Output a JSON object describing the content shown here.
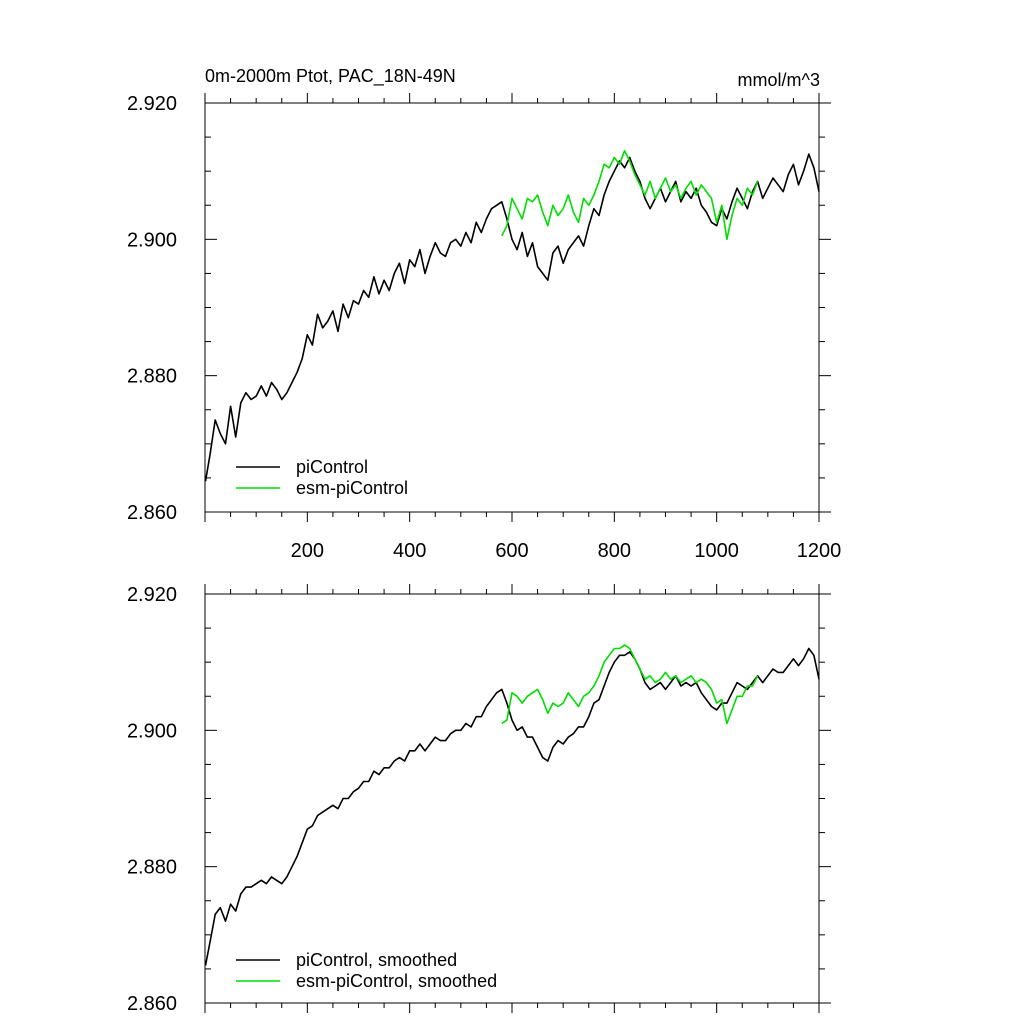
{
  "figure": {
    "title": "0m-2000m Ptot, PAC_18N-49N",
    "units": "mmol/m^3"
  },
  "colors": {
    "piControl": "#000000",
    "esm_piControl": "#00dd00"
  },
  "chart_data": [
    {
      "type": "line",
      "title": "0m-2000m Ptot, PAC_18N-49N",
      "units_label": "mmol/m^3",
      "xlim": [
        0,
        1200
      ],
      "ylim": [
        2.86,
        2.92
      ],
      "xticks": [
        200,
        400,
        600,
        800,
        1000,
        1200
      ],
      "yticks": [
        2.92,
        2.9,
        2.88,
        2.86
      ],
      "x_tick_labels": [
        "200",
        "400",
        "600",
        "800",
        "1000",
        "1200"
      ],
      "y_tick_labels": [
        "2.920",
        "2.900",
        "2.880",
        "2.860"
      ],
      "legend_position": "bottom-left",
      "series": [
        {
          "name": "piControl",
          "color": "#000000",
          "x": [
            1,
            10,
            20,
            30,
            40,
            50,
            60,
            70,
            80,
            90,
            100,
            110,
            120,
            130,
            140,
            150,
            160,
            170,
            180,
            190,
            200,
            210,
            220,
            230,
            240,
            250,
            260,
            270,
            280,
            290,
            300,
            310,
            320,
            330,
            340,
            350,
            360,
            370,
            380,
            390,
            400,
            410,
            420,
            430,
            440,
            450,
            460,
            470,
            480,
            490,
            500,
            510,
            520,
            530,
            540,
            550,
            560,
            570,
            580,
            590,
            600,
            610,
            620,
            630,
            640,
            650,
            660,
            670,
            680,
            690,
            700,
            710,
            720,
            730,
            740,
            750,
            760,
            770,
            780,
            790,
            800,
            810,
            820,
            830,
            840,
            850,
            860,
            870,
            880,
            890,
            900,
            910,
            920,
            930,
            940,
            950,
            960,
            970,
            980,
            990,
            1000,
            1010,
            1020,
            1030,
            1040,
            1050,
            1060,
            1070,
            1080,
            1090,
            1100,
            1110,
            1120,
            1130,
            1140,
            1150,
            1160,
            1170,
            1180,
            1190,
            1200
          ],
          "values": [
            2.8645,
            2.8685,
            2.8735,
            2.8715,
            2.87,
            2.8755,
            2.871,
            2.876,
            2.8775,
            2.8765,
            2.877,
            2.8785,
            2.877,
            2.879,
            2.878,
            2.8765,
            2.8775,
            2.879,
            2.8805,
            2.8825,
            2.886,
            2.8845,
            2.889,
            2.887,
            2.888,
            2.8895,
            2.8865,
            2.8905,
            2.8885,
            2.891,
            2.8905,
            2.8925,
            2.8915,
            2.8945,
            2.892,
            2.894,
            2.8925,
            2.895,
            2.8965,
            2.8935,
            2.897,
            2.896,
            2.8985,
            2.895,
            2.8975,
            2.8995,
            2.898,
            2.8975,
            2.8995,
            2.9,
            2.899,
            2.901,
            2.8995,
            2.9025,
            2.901,
            2.903,
            2.9045,
            2.905,
            2.9055,
            2.903,
            2.9,
            2.8985,
            2.901,
            2.8975,
            2.8995,
            2.896,
            2.895,
            2.894,
            2.898,
            2.899,
            2.8965,
            2.8985,
            2.8995,
            2.9005,
            2.899,
            2.902,
            2.9045,
            2.9035,
            2.9065,
            2.9085,
            2.91,
            2.9115,
            2.9105,
            2.912,
            2.91,
            2.9085,
            2.906,
            2.9045,
            2.906,
            2.9075,
            2.9055,
            2.907,
            2.9085,
            2.9055,
            2.907,
            2.906,
            2.9075,
            2.905,
            2.904,
            2.9025,
            2.902,
            2.9045,
            2.903,
            2.9055,
            2.9075,
            2.906,
            2.9045,
            2.907,
            2.9085,
            2.906,
            2.9075,
            2.909,
            2.908,
            2.907,
            2.9095,
            2.911,
            2.908,
            2.91,
            2.9125,
            2.9105,
            2.907
          ]
        },
        {
          "name": "esm-piControl",
          "color": "#00dd00",
          "x": [
            580,
            590,
            600,
            610,
            620,
            630,
            640,
            650,
            660,
            670,
            680,
            690,
            700,
            710,
            720,
            730,
            740,
            750,
            760,
            770,
            780,
            790,
            800,
            810,
            820,
            830,
            840,
            850,
            860,
            870,
            880,
            890,
            900,
            910,
            920,
            930,
            940,
            950,
            960,
            970,
            980,
            990,
            1000,
            1010,
            1020,
            1030,
            1040,
            1050,
            1060,
            1070,
            1080
          ],
          "values": [
            2.9005,
            2.902,
            2.906,
            2.9045,
            2.903,
            2.906,
            2.9055,
            2.9065,
            2.904,
            2.902,
            2.905,
            2.9035,
            2.9045,
            2.9065,
            2.904,
            2.9025,
            2.906,
            2.905,
            2.9065,
            2.9085,
            2.911,
            2.9105,
            2.912,
            2.911,
            2.913,
            2.9115,
            2.9095,
            2.908,
            2.9065,
            2.9085,
            2.906,
            2.9075,
            2.909,
            2.907,
            2.908,
            2.906,
            2.9075,
            2.9085,
            2.9065,
            2.908,
            2.907,
            2.906,
            2.9025,
            2.905,
            2.9,
            2.9035,
            2.906,
            2.905,
            2.9075,
            2.9065,
            2.9085
          ]
        }
      ]
    },
    {
      "type": "line",
      "xlim": [
        0,
        1200
      ],
      "ylim": [
        2.86,
        2.92
      ],
      "xticks": [
        200,
        400,
        600,
        800,
        1000,
        1200
      ],
      "yticks": [
        2.92,
        2.9,
        2.88,
        2.86
      ],
      "y_tick_labels": [
        "2.920",
        "2.900",
        "2.880",
        "2.860"
      ],
      "legend_position": "bottom-left",
      "series": [
        {
          "name": "piControl, smoothed",
          "color": "#000000",
          "x": [
            1,
            10,
            20,
            30,
            40,
            50,
            60,
            70,
            80,
            90,
            100,
            110,
            120,
            130,
            140,
            150,
            160,
            170,
            180,
            190,
            200,
            210,
            220,
            230,
            240,
            250,
            260,
            270,
            280,
            290,
            300,
            310,
            320,
            330,
            340,
            350,
            360,
            370,
            380,
            390,
            400,
            410,
            420,
            430,
            440,
            450,
            460,
            470,
            480,
            490,
            500,
            510,
            520,
            530,
            540,
            550,
            560,
            570,
            580,
            590,
            600,
            610,
            620,
            630,
            640,
            650,
            660,
            670,
            680,
            690,
            700,
            710,
            720,
            730,
            740,
            750,
            760,
            770,
            780,
            790,
            800,
            810,
            820,
            830,
            840,
            850,
            860,
            870,
            880,
            890,
            900,
            910,
            920,
            930,
            940,
            950,
            960,
            970,
            980,
            990,
            1000,
            1010,
            1020,
            1030,
            1040,
            1050,
            1060,
            1070,
            1080,
            1090,
            1100,
            1110,
            1120,
            1130,
            1140,
            1150,
            1160,
            1170,
            1180,
            1190,
            1200
          ],
          "values": [
            2.8655,
            2.869,
            2.873,
            2.874,
            2.872,
            2.8745,
            2.8735,
            2.876,
            2.877,
            2.877,
            2.8775,
            2.878,
            2.8775,
            2.8785,
            2.878,
            2.8775,
            2.8785,
            2.88,
            2.8815,
            2.8835,
            2.8855,
            2.886,
            2.8875,
            2.888,
            2.8885,
            2.889,
            2.8885,
            2.89,
            2.89,
            2.891,
            2.8915,
            2.8925,
            2.8925,
            2.894,
            2.8935,
            2.8945,
            2.8945,
            2.8955,
            2.896,
            2.8955,
            2.897,
            2.897,
            2.898,
            2.897,
            2.898,
            2.899,
            2.8985,
            2.8985,
            2.8995,
            2.9,
            2.9,
            2.901,
            2.9005,
            2.902,
            2.902,
            2.9035,
            2.9045,
            2.9055,
            2.906,
            2.904,
            2.9015,
            2.9,
            2.9005,
            2.899,
            2.899,
            2.8975,
            2.896,
            2.8955,
            2.8975,
            2.8985,
            2.898,
            2.899,
            2.8995,
            2.9005,
            2.9005,
            2.902,
            2.904,
            2.9045,
            2.9065,
            2.9085,
            2.91,
            2.911,
            2.911,
            2.9115,
            2.9105,
            2.909,
            2.907,
            2.906,
            2.9065,
            2.907,
            2.906,
            2.907,
            2.908,
            2.9065,
            2.907,
            2.9065,
            2.907,
            2.9055,
            2.9045,
            2.9035,
            2.903,
            2.904,
            2.904,
            2.9055,
            2.907,
            2.9065,
            2.906,
            2.907,
            2.908,
            2.907,
            2.908,
            2.909,
            2.9085,
            2.9085,
            2.9095,
            2.9105,
            2.9095,
            2.9105,
            2.912,
            2.911,
            2.9075
          ]
        },
        {
          "name": "esm-piControl, smoothed",
          "color": "#00dd00",
          "x": [
            580,
            590,
            600,
            610,
            620,
            630,
            640,
            650,
            660,
            670,
            680,
            690,
            700,
            710,
            720,
            730,
            740,
            750,
            760,
            770,
            780,
            790,
            800,
            810,
            820,
            830,
            840,
            850,
            860,
            870,
            880,
            890,
            900,
            910,
            920,
            930,
            940,
            950,
            960,
            970,
            980,
            990,
            1000,
            1010,
            1020,
            1030,
            1040,
            1050,
            1060,
            1070,
            1080
          ],
          "values": [
            2.901,
            2.9015,
            2.9055,
            2.905,
            2.904,
            2.905,
            2.9055,
            2.906,
            2.9045,
            2.9025,
            2.904,
            2.9035,
            2.904,
            2.9055,
            2.9045,
            2.9035,
            2.905,
            2.9055,
            2.9065,
            2.908,
            2.91,
            2.911,
            2.912,
            2.912,
            2.9125,
            2.912,
            2.9105,
            2.909,
            2.9075,
            2.908,
            2.907,
            2.9075,
            2.9085,
            2.9075,
            2.908,
            2.907,
            2.9075,
            2.908,
            2.907,
            2.9075,
            2.907,
            2.906,
            2.904,
            2.9045,
            2.901,
            2.903,
            2.905,
            2.905,
            2.9065,
            2.9065,
            2.908
          ]
        }
      ]
    }
  ]
}
